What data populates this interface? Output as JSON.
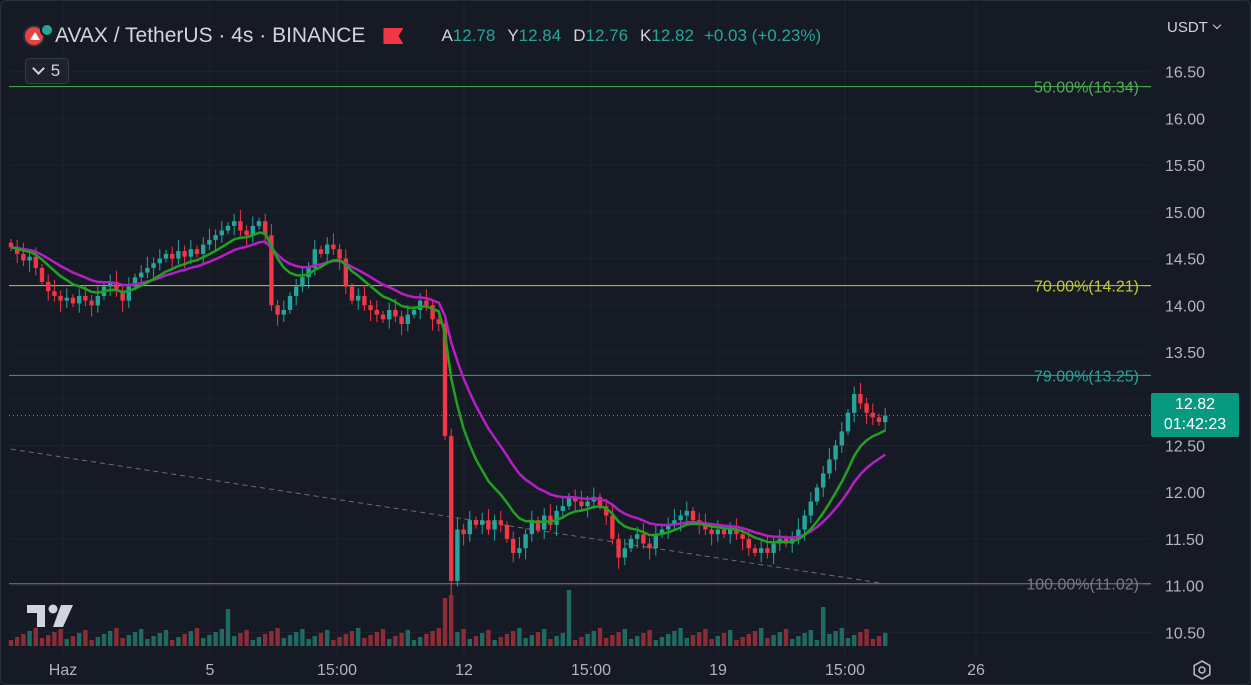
{
  "header": {
    "symbol": "AVAX / TetherUS · 4s · BINANCE",
    "open_label": "A",
    "open": "12.78",
    "high_label": "Y",
    "high": "12.84",
    "low_label": "D",
    "low": "12.76",
    "close_label": "K",
    "close": "12.82",
    "change": "+0.03 (+0.23%)",
    "indicator_count": "5"
  },
  "currency": "USDT",
  "last_price": "12.82",
  "countdown": "01:42:23",
  "colors": {
    "up": "#26a69a",
    "down": "#f23645",
    "ema_fast": "#1fa31f",
    "ema_slow": "#b71fc6",
    "fib_50": "#4caf50",
    "fib_70": "#c0ca33",
    "fib_79": "#26a69a",
    "fib_100": "#787b86"
  },
  "icons": {
    "logo": "avax-logo-icon",
    "flag": "flag-icon",
    "settings": "gear-icon",
    "brand": "tradingview-logo-icon"
  },
  "chart_data": {
    "type": "candlestick",
    "y_axis": {
      "min": 10.3,
      "max": 16.7,
      "ticks": [
        "10.50",
        "11.00",
        "11.50",
        "12.00",
        "12.50",
        "13.00",
        "13.50",
        "14.00",
        "14.50",
        "15.00",
        "15.50",
        "16.00",
        "16.50"
      ]
    },
    "x_axis": {
      "labels": [
        "Haz",
        "5",
        "15:00",
        "12",
        "15:00",
        "19",
        "15:00",
        "26"
      ]
    },
    "fib_levels": [
      {
        "label": "50.00%(16.34)",
        "value": 16.34
      },
      {
        "label": "70.00%(14.21)",
        "value": 14.21
      },
      {
        "label": "79.00%(13.25)",
        "value": 13.25
      },
      {
        "label": "100.00%(11.02)",
        "value": 11.02
      }
    ],
    "trendline": {
      "from": {
        "bar": 0,
        "price": 12.46
      },
      "to": {
        "bar": 140,
        "price": 11.03
      }
    },
    "close_series": [
      14.62,
      14.55,
      14.48,
      14.52,
      14.4,
      14.25,
      14.15,
      14.1,
      14.05,
      14.08,
      14.02,
      14.1,
      14.05,
      14.0,
      14.1,
      14.2,
      14.25,
      14.15,
      14.05,
      14.2,
      14.3,
      14.35,
      14.4,
      14.45,
      14.5,
      14.55,
      14.5,
      14.58,
      14.52,
      14.6,
      14.55,
      14.65,
      14.7,
      14.75,
      14.8,
      14.85,
      14.9,
      14.8,
      14.75,
      14.85,
      14.9,
      14.75,
      14.0,
      13.9,
      13.95,
      14.1,
      14.2,
      14.3,
      14.4,
      14.6,
      14.55,
      14.65,
      14.6,
      14.5,
      14.2,
      14.05,
      14.1,
      14.0,
      13.95,
      13.9,
      13.85,
      13.95,
      13.88,
      13.8,
      13.9,
      13.95,
      14.05,
      14.0,
      13.85,
      13.8,
      12.6,
      11.05,
      11.6,
      11.55,
      11.7,
      11.65,
      11.7,
      11.6,
      11.7,
      11.65,
      11.5,
      11.35,
      11.4,
      11.55,
      11.7,
      11.6,
      11.75,
      11.65,
      11.8,
      11.85,
      11.95,
      11.9,
      11.85,
      11.9,
      11.95,
      11.85,
      11.75,
      11.5,
      11.3,
      11.4,
      11.5,
      11.55,
      11.45,
      11.4,
      11.55,
      11.6,
      11.65,
      11.7,
      11.75,
      11.8,
      11.7,
      11.65,
      11.6,
      11.55,
      11.6,
      11.55,
      11.6,
      11.55,
      11.5,
      11.4,
      11.35,
      11.4,
      11.35,
      11.45,
      11.5,
      11.45,
      11.5,
      11.6,
      11.75,
      11.9,
      12.05,
      12.2,
      12.35,
      12.5,
      12.65,
      12.85,
      13.05,
      12.95,
      12.85,
      12.8,
      12.75,
      12.82
    ],
    "ema_fast": {
      "name": "",
      "values_start": 14.55,
      "values_end": 12.65
    },
    "ema_slow": {
      "name": "",
      "values_start": 14.55,
      "values_end": 12.45
    }
  }
}
